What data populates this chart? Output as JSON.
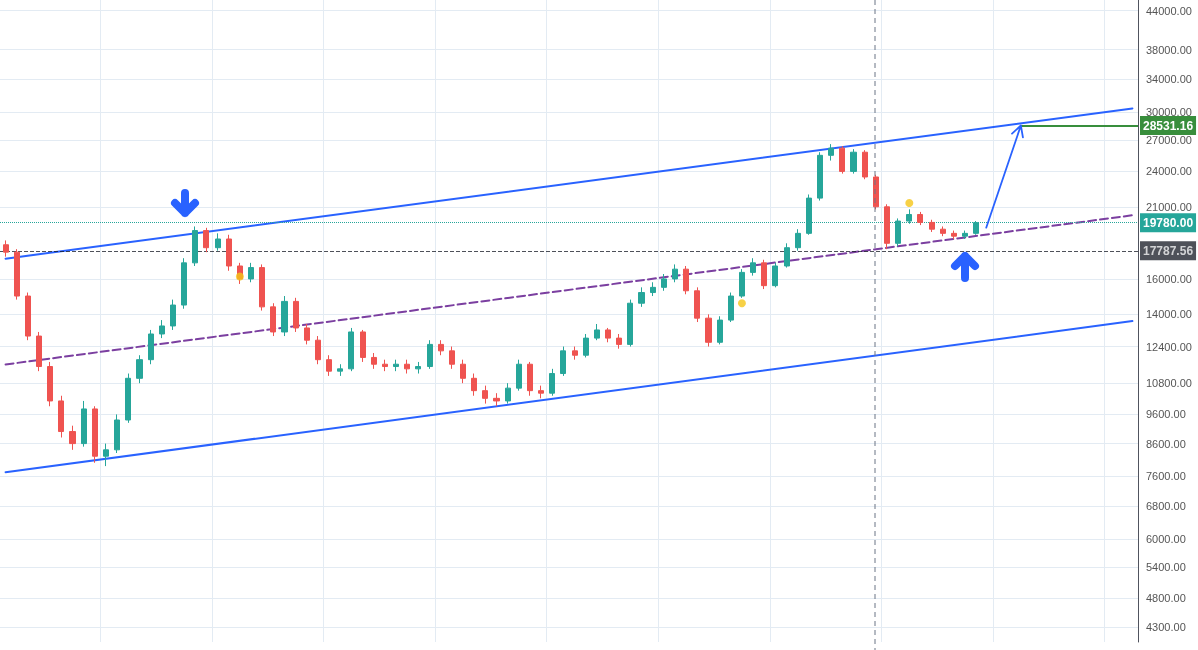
{
  "chart_data": {
    "type": "candlestick",
    "log": "y",
    "grid": true,
    "categories": [
      null,
      null,
      null,
      null,
      null,
      null,
      null,
      null,
      null,
      null,
      null,
      null,
      null,
      null,
      null,
      null,
      null,
      null,
      null,
      null,
      null,
      null,
      null,
      null,
      null,
      null,
      null,
      null,
      null,
      null,
      null,
      null,
      null,
      null,
      null,
      null,
      null,
      null,
      null,
      null,
      null,
      null,
      null,
      null,
      null,
      null,
      null,
      null,
      null,
      null,
      null,
      null,
      null,
      null,
      null,
      null,
      null,
      null,
      null,
      null,
      null,
      null,
      null,
      null,
      null,
      null,
      null,
      null,
      null,
      null,
      null,
      null,
      null,
      null,
      null,
      null,
      null,
      null,
      null,
      null,
      null,
      null,
      null,
      null,
      null,
      null,
      null,
      null,
      null,
      null,
      null,
      null,
      null,
      null,
      null,
      null,
      null,
      null,
      null,
      null,
      null,
      null
    ],
    "ylim": [
      4070,
      45800
    ],
    "yticks": [
      {
        "value": 4300,
        "label": "4300.00"
      },
      {
        "value": 4800,
        "label": "4800.00"
      },
      {
        "value": 5400,
        "label": "5400.00"
      },
      {
        "value": 6000,
        "label": "6000.00"
      },
      {
        "value": 6800,
        "label": "6800.00"
      },
      {
        "value": 7600,
        "label": "7600.00"
      },
      {
        "value": 8600,
        "label": "8600.00"
      },
      {
        "value": 9600,
        "label": "9600.00"
      },
      {
        "value": 10800,
        "label": "10800.00"
      },
      {
        "value": 12400,
        "label": "12400.00"
      },
      {
        "value": 14000,
        "label": "14000.00"
      },
      {
        "value": 16000,
        "label": "16000.00"
      },
      {
        "value": 21000,
        "label": "21000.00"
      },
      {
        "value": 24000,
        "label": "24000.00"
      },
      {
        "value": 27000,
        "label": "27000.00"
      },
      {
        "value": 30000,
        "label": "30000.00"
      },
      {
        "value": 34000,
        "label": "34000.00"
      },
      {
        "value": 38000,
        "label": "38000.00"
      },
      {
        "value": 44000,
        "label": "44000.00"
      }
    ],
    "ref_lines": [
      {
        "axis": "y",
        "value": 28531.16,
        "label": "28531.16",
        "color": "#388e3c",
        "line_style": "solid"
      },
      {
        "axis": "y",
        "value": 19780,
        "label": "19780.00",
        "color": "#26a69a",
        "line_style": "dotted"
      },
      {
        "axis": "y",
        "value": 17787.56,
        "label": "17787.56",
        "color": "#131722",
        "line_style": "dashed"
      }
    ],
    "series": [
      {
        "ohlc": [
          [
            18200,
            18500,
            17400,
            17700
          ],
          [
            17700,
            17900,
            14800,
            15000
          ],
          [
            15000,
            15200,
            12700,
            12900
          ],
          [
            12900,
            13100,
            11300,
            11500
          ],
          [
            11500,
            11700,
            9900,
            10100
          ],
          [
            10100,
            10300,
            8800,
            9000
          ],
          [
            9000,
            9200,
            8400,
            8600
          ],
          [
            8600,
            10100,
            8500,
            9800
          ],
          [
            9800,
            9900,
            8000,
            8200
          ],
          [
            8200,
            8600,
            7900,
            8400
          ],
          [
            8400,
            9600,
            8300,
            9400
          ],
          [
            9400,
            11200,
            9300,
            11000
          ],
          [
            11000,
            12000,
            10800,
            11800
          ],
          [
            11800,
            13200,
            11600,
            13000
          ],
          [
            13000,
            13700,
            12800,
            13400
          ],
          [
            13400,
            14800,
            13200,
            14500
          ],
          [
            14500,
            17300,
            14300,
            17000
          ],
          [
            17000,
            19500,
            16800,
            19200
          ],
          [
            19200,
            19400,
            17700,
            18000
          ],
          [
            18000,
            19000,
            17800,
            18600
          ],
          [
            18600,
            18900,
            16500,
            16800
          ],
          [
            16800,
            17000,
            15700,
            16000
          ],
          [
            16000,
            17000,
            15800,
            16700
          ],
          [
            16700,
            16900,
            14200,
            14400
          ],
          [
            14400,
            14600,
            12900,
            13100
          ],
          [
            13100,
            15000,
            12900,
            14700
          ],
          [
            14700,
            14900,
            13100,
            13300
          ],
          [
            13300,
            13500,
            12500,
            12700
          ],
          [
            12700,
            12900,
            11600,
            11800
          ],
          [
            11800,
            12000,
            11100,
            11300
          ],
          [
            11300,
            11600,
            11100,
            11400
          ],
          [
            11400,
            13300,
            11300,
            13100
          ],
          [
            13100,
            13200,
            11700,
            11900
          ],
          [
            11900,
            12100,
            11400,
            11600
          ],
          [
            11600,
            11800,
            11300,
            11500
          ],
          [
            11500,
            11800,
            11300,
            11600
          ],
          [
            11600,
            11800,
            11200,
            11400
          ],
          [
            11400,
            11700,
            11200,
            11500
          ],
          [
            11500,
            12700,
            11400,
            12500
          ],
          [
            12500,
            12700,
            12000,
            12200
          ],
          [
            12200,
            12400,
            11400,
            11600
          ],
          [
            11600,
            11800,
            10800,
            11000
          ],
          [
            11000,
            11200,
            10300,
            10500
          ],
          [
            10500,
            10700,
            10000,
            10200
          ],
          [
            10200,
            10400,
            9900,
            10100
          ],
          [
            10100,
            10800,
            10000,
            10600
          ],
          [
            10600,
            11800,
            10500,
            11600
          ],
          [
            11600,
            11700,
            10300,
            10500
          ],
          [
            10500,
            10700,
            10200,
            10400
          ],
          [
            10400,
            11400,
            10300,
            11200
          ],
          [
            11200,
            12400,
            11100,
            12200
          ],
          [
            12200,
            12400,
            11800,
            12000
          ],
          [
            12000,
            13000,
            11900,
            12800
          ],
          [
            12800,
            13500,
            12700,
            13200
          ],
          [
            13200,
            13300,
            12600,
            12800
          ],
          [
            12800,
            13000,
            12300,
            12500
          ],
          [
            12500,
            14800,
            12400,
            14600
          ],
          [
            14600,
            15500,
            14400,
            15200
          ],
          [
            15200,
            15800,
            15000,
            15500
          ],
          [
            15500,
            16300,
            15300,
            16000
          ],
          [
            16000,
            16900,
            15800,
            16600
          ],
          [
            16600,
            16800,
            15100,
            15300
          ],
          [
            15300,
            15500,
            13600,
            13800
          ],
          [
            13800,
            14000,
            12400,
            12600
          ],
          [
            12600,
            13900,
            12500,
            13700
          ],
          [
            13700,
            15200,
            13600,
            15000
          ],
          [
            15000,
            16600,
            14900,
            16400
          ],
          [
            16400,
            17300,
            16200,
            17000
          ],
          [
            17000,
            17200,
            15400,
            15600
          ],
          [
            15600,
            17000,
            15500,
            16800
          ],
          [
            16800,
            18300,
            16700,
            18000
          ],
          [
            18000,
            19300,
            17800,
            19000
          ],
          [
            19000,
            22000,
            18900,
            21700
          ],
          [
            21700,
            25800,
            21500,
            25500
          ],
          [
            25500,
            26600,
            25000,
            26200
          ],
          [
            26200,
            26400,
            23800,
            24000
          ],
          [
            24000,
            26100,
            23800,
            25800
          ],
          [
            25800,
            26000,
            23300,
            23500
          ],
          [
            23500,
            23700,
            20800,
            21000
          ],
          [
            21000,
            21200,
            17900,
            18300
          ],
          [
            18300,
            20100,
            18100,
            19900
          ],
          [
            19900,
            20800,
            19700,
            20400
          ],
          [
            20400,
            20600,
            19600,
            19800
          ],
          [
            19800,
            20000,
            19100,
            19300
          ],
          [
            19300,
            19500,
            18800,
            19000
          ],
          [
            19000,
            19200,
            18600,
            18800
          ],
          [
            18800,
            19200,
            18600,
            19000
          ],
          [
            19000,
            19900,
            18900,
            19780
          ],
          null,
          null,
          null,
          null,
          null,
          null,
          null,
          null,
          null,
          null,
          null,
          null,
          null,
          null
        ],
        "colors": [
          "#ef5350",
          "#ef5350",
          "#ef5350",
          "#ef5350",
          "#ef5350",
          "#ef5350",
          "#ef5350",
          "#26a69a",
          "#ef5350",
          "#26a69a",
          "#26a69a",
          "#26a69a",
          "#26a69a",
          "#26a69a",
          "#26a69a",
          "#26a69a",
          "#26a69a",
          "#26a69a",
          "#ef5350",
          "#26a69a",
          "#ef5350",
          "#ef5350",
          "#26a69a",
          "#ef5350",
          "#ef5350",
          "#26a69a",
          "#ef5350",
          "#ef5350",
          "#ef5350",
          "#ef5350",
          "#26a69a",
          "#26a69a",
          "#ef5350",
          "#ef5350",
          "#ef5350",
          "#26a69a",
          "#ef5350",
          "#26a69a",
          "#26a69a",
          "#ef5350",
          "#ef5350",
          "#ef5350",
          "#ef5350",
          "#ef5350",
          "#ef5350",
          "#26a69a",
          "#26a69a",
          "#ef5350",
          "#ef5350",
          "#26a69a",
          "#26a69a",
          "#ef5350",
          "#26a69a",
          "#26a69a",
          "#ef5350",
          "#ef5350",
          "#26a69a",
          "#26a69a",
          "#26a69a",
          "#26a69a",
          "#26a69a",
          "#ef5350",
          "#ef5350",
          "#ef5350",
          "#26a69a",
          "#26a69a",
          "#26a69a",
          "#26a69a",
          "#ef5350",
          "#26a69a",
          "#26a69a",
          "#26a69a",
          "#26a69a",
          "#26a69a",
          "#26a69a",
          "#ef5350",
          "#26a69a",
          "#ef5350",
          "#ef5350",
          "#ef5350",
          "#26a69a",
          "#26a69a",
          "#ef5350",
          "#ef5350",
          "#ef5350",
          "#ef5350",
          "#26a69a",
          "#26a69a",
          null,
          null,
          null,
          null,
          null,
          null,
          null,
          null,
          null,
          null,
          null,
          null,
          null,
          null
        ]
      },
      {
        "type": "line",
        "color": "#2962ff",
        "line_style": "solid",
        "marker": "none",
        "values": [
          17270,
          null,
          null,
          null,
          null,
          null,
          null,
          null,
          null,
          null,
          null,
          null,
          null,
          null,
          null,
          null,
          null,
          null,
          null,
          null,
          null,
          null,
          null,
          null,
          null,
          null,
          null,
          null,
          null,
          null,
          null,
          null,
          null,
          null,
          null,
          null,
          null,
          null,
          null,
          null,
          null,
          null,
          null,
          null,
          null,
          null,
          null,
          null,
          null,
          null,
          null,
          null,
          null,
          null,
          null,
          null,
          null,
          null,
          null,
          null,
          null,
          null,
          null,
          null,
          null,
          null,
          null,
          null,
          null,
          null,
          null,
          null,
          null,
          null,
          null,
          null,
          null,
          null,
          null,
          null,
          null,
          null,
          null,
          null,
          null,
          null,
          null,
          null,
          null,
          null,
          null,
          null,
          null,
          null,
          null,
          null,
          null,
          null,
          null,
          null,
          null,
          30430
        ]
      },
      {
        "type": "line",
        "color": "#2962ff",
        "line_style": "solid",
        "marker": "none",
        "values": [
          7720,
          null,
          null,
          null,
          null,
          null,
          null,
          null,
          null,
          null,
          null,
          null,
          null,
          null,
          null,
          null,
          null,
          null,
          null,
          null,
          null,
          null,
          null,
          null,
          null,
          null,
          null,
          null,
          null,
          null,
          null,
          null,
          null,
          null,
          null,
          null,
          null,
          null,
          null,
          null,
          null,
          null,
          null,
          null,
          null,
          null,
          null,
          null,
          null,
          null,
          null,
          null,
          null,
          null,
          null,
          null,
          null,
          null,
          null,
          null,
          null,
          null,
          null,
          null,
          null,
          null,
          null,
          null,
          null,
          null,
          null,
          null,
          null,
          null,
          null,
          null,
          null,
          null,
          null,
          null,
          null,
          null,
          null,
          null,
          null,
          null,
          null,
          null,
          null,
          null,
          null,
          null,
          null,
          null,
          null,
          null,
          null,
          null,
          null,
          null,
          null,
          13650
        ]
      },
      {
        "type": "line",
        "color": "#7b3fa0",
        "line_style": "dashed",
        "marker": "none",
        "values": [
          11590,
          null,
          null,
          null,
          null,
          null,
          null,
          null,
          null,
          null,
          null,
          null,
          null,
          null,
          null,
          null,
          null,
          null,
          null,
          null,
          null,
          null,
          null,
          null,
          null,
          null,
          null,
          null,
          null,
          null,
          null,
          null,
          null,
          null,
          null,
          null,
          null,
          null,
          null,
          null,
          null,
          null,
          null,
          null,
          null,
          null,
          null,
          null,
          null,
          null,
          null,
          null,
          null,
          null,
          null,
          null,
          null,
          null,
          null,
          null,
          null,
          null,
          null,
          null,
          null,
          null,
          null,
          null,
          null,
          null,
          null,
          null,
          null,
          null,
          null,
          null,
          null,
          null,
          null,
          null,
          null,
          null,
          null,
          null,
          null,
          null,
          null,
          null,
          null,
          null,
          null,
          null,
          null,
          null,
          null,
          null,
          null,
          null,
          null,
          null,
          null,
          20340
        ]
      },
      {
        "type": "scatter",
        "color": "#f5c518",
        "marker": "circle",
        "values": [
          null,
          null,
          null,
          null,
          null,
          null,
          null,
          null,
          null,
          null,
          null,
          null,
          null,
          null,
          null,
          null,
          null,
          null,
          null,
          null,
          null,
          16150,
          null,
          null,
          null,
          null,
          null,
          null,
          null,
          null,
          null,
          null,
          null,
          null,
          null,
          null,
          null,
          null,
          null,
          null,
          null,
          null,
          null,
          null,
          null,
          null,
          null,
          null,
          null,
          null,
          null,
          null,
          null,
          null,
          null,
          null,
          null,
          null,
          null,
          null,
          null,
          null,
          null,
          null,
          null,
          null,
          14600,
          null,
          null,
          null,
          null,
          null,
          null,
          null,
          null,
          null,
          null,
          null,
          null,
          null,
          null,
          21300,
          null,
          null,
          null,
          null,
          null,
          null,
          null,
          null,
          null,
          null,
          null,
          null,
          null,
          null,
          null,
          null,
          null,
          null,
          null,
          null
        ]
      }
    ]
  }
}
